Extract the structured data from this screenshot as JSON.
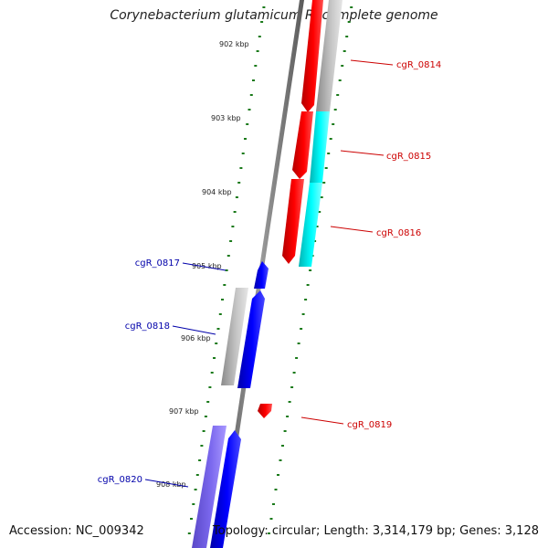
{
  "title": "Corynebacterium glutamicum R, complete genome",
  "footer": {
    "accession": "Accession: NC_009342",
    "topology": "Topology: circular; Length: 3,314,179 bp; Genes: 3,128"
  },
  "colors": {
    "forward_gene": "#ff0000",
    "reverse_gene": "#0000ff",
    "forward_label": "#cc0000",
    "reverse_label": "#0000aa",
    "cyan_feature": "#00ffff",
    "gray_feature": "#bbbbbb",
    "purple_feature": "#7b68ee",
    "ticks": "#1a7a1a"
  },
  "ruler": [
    {
      "label": "902 kbp"
    },
    {
      "label": "903 kbp"
    },
    {
      "label": "904 kbp"
    },
    {
      "label": "905 kbp"
    },
    {
      "label": "906 kbp"
    },
    {
      "label": "907 kbp"
    },
    {
      "label": "908 kbp"
    }
  ],
  "genes": [
    {
      "name": "cgR_0814",
      "strand": "forward"
    },
    {
      "name": "cgR_0815",
      "strand": "forward"
    },
    {
      "name": "cgR_0816",
      "strand": "forward"
    },
    {
      "name": "cgR_0817",
      "strand": "reverse"
    },
    {
      "name": "cgR_0818",
      "strand": "reverse"
    },
    {
      "name": "cgR_0819",
      "strand": "forward"
    },
    {
      "name": "cgR_0820",
      "strand": "reverse"
    }
  ]
}
